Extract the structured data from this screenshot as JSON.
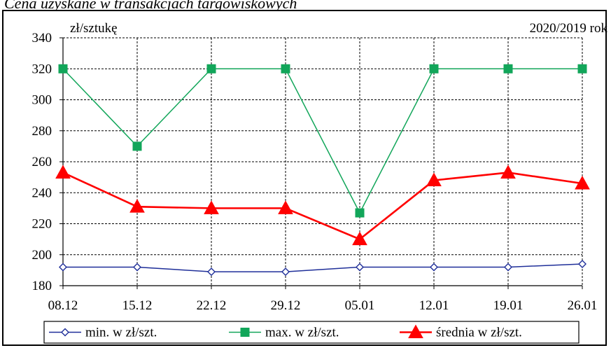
{
  "title": "Cena uzyskane w transakcjach targowiskowych",
  "chart_data": {
    "type": "line",
    "categories": [
      "08.12",
      "15.12",
      "22.12",
      "29.12",
      "05.01",
      "12.01",
      "19.01",
      "26.01"
    ],
    "ylabel": "zł/sztukę",
    "annotation": "2020/2019 rok",
    "ylim": [
      180,
      340
    ],
    "yticks": [
      180,
      200,
      220,
      240,
      260,
      280,
      300,
      320,
      340
    ],
    "grid": true,
    "legend_position": "bottom",
    "series": [
      {
        "name": "min. w zł/szt.",
        "color": "#1f2f99",
        "marker": "diamond",
        "values": [
          192,
          192,
          189,
          189,
          192,
          192,
          192,
          194
        ]
      },
      {
        "name": "max. w zł/szt.",
        "color": "#12a65a",
        "marker": "square",
        "values": [
          320,
          270,
          320,
          320,
          227,
          320,
          320,
          320
        ]
      },
      {
        "name": "średnia w zł/szt.",
        "color": "#ff0000",
        "marker": "triangle",
        "values": [
          253,
          231,
          230,
          230,
          210,
          248,
          253,
          246
        ]
      }
    ]
  }
}
